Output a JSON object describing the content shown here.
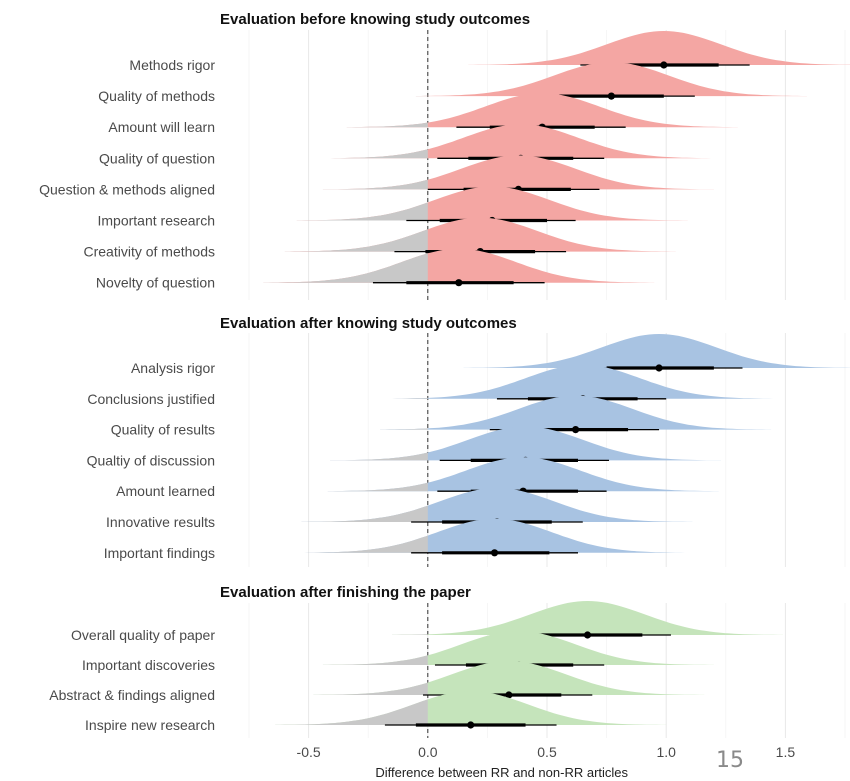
{
  "chart_data": {
    "type": "ridgeline-halfeye",
    "xlabel": "Difference between RR and non-RR articles",
    "xlim": [
      -0.75,
      1.75
    ],
    "xticks": [
      -0.5,
      0.0,
      0.5,
      1.0,
      1.5
    ],
    "xtick_labels": [
      "-0.5",
      "0.0",
      "0.5",
      "1.0",
      "1.5"
    ],
    "reference_line": 0,
    "grid": true,
    "panels": [
      {
        "title": "Evaluation before knowing study outcomes",
        "color": "#f4a6a3",
        "rows": [
          {
            "label": "Methods rigor",
            "point": 0.99,
            "inner": [
              0.76,
              1.22
            ],
            "outer": [
              0.64,
              1.35
            ]
          },
          {
            "label": "Quality of methods",
            "point": 0.77,
            "inner": [
              0.55,
              0.99
            ],
            "outer": [
              0.42,
              1.12
            ]
          },
          {
            "label": "Amount will learn",
            "point": 0.48,
            "inner": [
              0.26,
              0.7
            ],
            "outer": [
              0.12,
              0.83
            ]
          },
          {
            "label": "Quality of question",
            "point": 0.39,
            "inner": [
              0.17,
              0.61
            ],
            "outer": [
              0.04,
              0.74
            ]
          },
          {
            "label": "Question & methods aligned",
            "point": 0.38,
            "inner": [
              0.15,
              0.6
            ],
            "outer": [
              0.0,
              0.72
            ]
          },
          {
            "label": "Important research",
            "point": 0.27,
            "inner": [
              0.05,
              0.5
            ],
            "outer": [
              -0.09,
              0.62
            ]
          },
          {
            "label": "Creativity of methods",
            "point": 0.22,
            "inner": [
              -0.01,
              0.45
            ],
            "outer": [
              -0.14,
              0.58
            ]
          },
          {
            "label": "Novelty of question",
            "point": 0.13,
            "inner": [
              -0.09,
              0.36
            ],
            "outer": [
              -0.23,
              0.49
            ]
          }
        ]
      },
      {
        "title": "Evaluation after knowing study outcomes",
        "color": "#a8c3e2",
        "rows": [
          {
            "label": "Analysis rigor",
            "point": 0.97,
            "inner": [
              0.75,
              1.2
            ],
            "outer": [
              0.61,
              1.32
            ]
          },
          {
            "label": "Conclusions justified",
            "point": 0.65,
            "inner": [
              0.42,
              0.88
            ],
            "outer": [
              0.29,
              1.0
            ]
          },
          {
            "label": "Quality of results",
            "point": 0.62,
            "inner": [
              0.39,
              0.84
            ],
            "outer": [
              0.26,
              0.97
            ]
          },
          {
            "label": "Qualtiy of discussion",
            "point": 0.41,
            "inner": [
              0.18,
              0.63
            ],
            "outer": [
              0.05,
              0.76
            ]
          },
          {
            "label": "Amount learned",
            "point": 0.4,
            "inner": [
              0.18,
              0.63
            ],
            "outer": [
              0.04,
              0.75
            ]
          },
          {
            "label": "Innovative results",
            "point": 0.29,
            "inner": [
              0.06,
              0.52
            ],
            "outer": [
              -0.07,
              0.65
            ]
          },
          {
            "label": "Important findings",
            "point": 0.28,
            "inner": [
              0.06,
              0.51
            ],
            "outer": [
              -0.07,
              0.63
            ]
          }
        ]
      },
      {
        "title": "Evaluation after finishing the paper",
        "color": "#c5e4bb",
        "rows": [
          {
            "label": "Overall quality of paper",
            "point": 0.67,
            "inner": [
              0.44,
              0.9
            ],
            "outer": [
              0.31,
              1.02
            ]
          },
          {
            "label": "Important discoveries",
            "point": 0.38,
            "inner": [
              0.16,
              0.61
            ],
            "outer": [
              0.03,
              0.74
            ]
          },
          {
            "label": "Abstract & findings aligned",
            "point": 0.34,
            "inner": [
              0.11,
              0.56
            ],
            "outer": [
              -0.02,
              0.69
            ]
          },
          {
            "label": "Inspire new research",
            "point": 0.18,
            "inner": [
              -0.05,
              0.41
            ],
            "outer": [
              -0.18,
              0.54
            ]
          }
        ]
      }
    ],
    "negative_region_color": "#c8c8c8"
  },
  "slide_number": "15"
}
